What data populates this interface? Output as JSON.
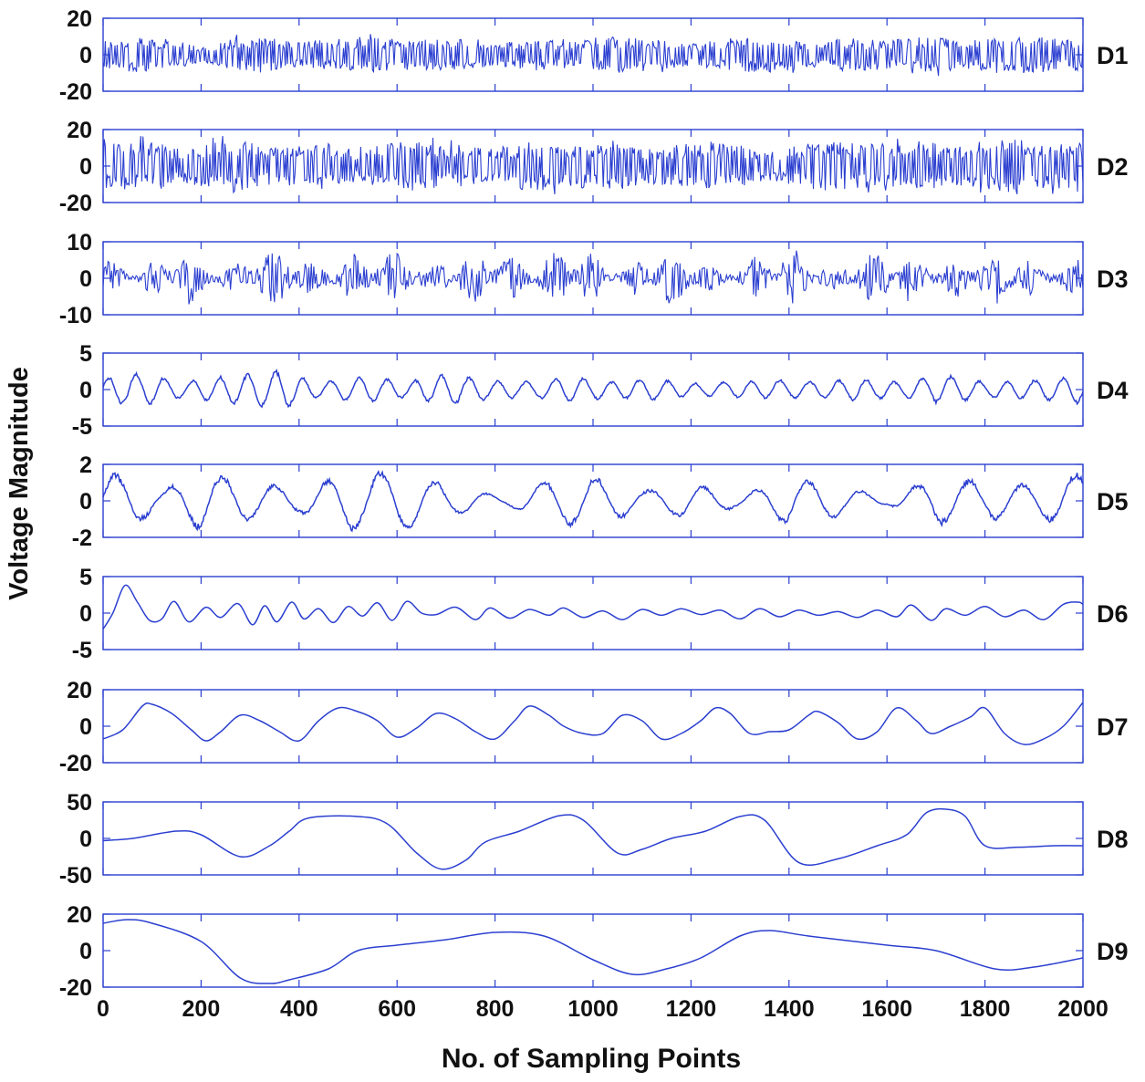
{
  "chart_data": {
    "type": "line",
    "xlabel": "No. of Sampling Points",
    "ylabel": "Voltage Magnitude",
    "xlim": [
      0,
      2000
    ],
    "x_ticks": [
      "0",
      "200",
      "400",
      "600",
      "800",
      "1000",
      "1200",
      "1400",
      "1600",
      "1800",
      "2000"
    ],
    "grid": false,
    "line_color": "#2b3fd0",
    "panels": [
      {
        "name": "D1",
        "ylim": [
          -20,
          20
        ],
        "y_ticks": [
          "20",
          "0",
          "-20"
        ],
        "style": "dense",
        "envelope": [
          [
            0,
            8
          ],
          [
            100,
            10
          ],
          [
            180,
            6
          ],
          [
            200,
            4
          ],
          [
            260,
            9
          ],
          [
            320,
            10
          ],
          [
            400,
            7
          ],
          [
            480,
            9
          ],
          [
            560,
            10
          ],
          [
            640,
            8
          ],
          [
            720,
            9
          ],
          [
            800,
            6
          ],
          [
            880,
            9
          ],
          [
            960,
            7
          ],
          [
            1040,
            10
          ],
          [
            1120,
            9
          ],
          [
            1200,
            6
          ],
          [
            1280,
            9
          ],
          [
            1360,
            10
          ],
          [
            1440,
            7
          ],
          [
            1520,
            9
          ],
          [
            1600,
            8
          ],
          [
            1680,
            10
          ],
          [
            1760,
            8
          ],
          [
            1840,
            9
          ],
          [
            1920,
            10
          ],
          [
            2000,
            7
          ]
        ]
      },
      {
        "name": "D2",
        "ylim": [
          -20,
          20
        ],
        "y_ticks": [
          "20",
          "0",
          "-20"
        ],
        "style": "dense",
        "envelope": [
          [
            0,
            12
          ],
          [
            100,
            14
          ],
          [
            160,
            9
          ],
          [
            260,
            15
          ],
          [
            360,
            10
          ],
          [
            460,
            13
          ],
          [
            520,
            8
          ],
          [
            600,
            14
          ],
          [
            700,
            12
          ],
          [
            800,
            10
          ],
          [
            880,
            14
          ],
          [
            960,
            12
          ],
          [
            1040,
            15
          ],
          [
            1100,
            9
          ],
          [
            1200,
            13
          ],
          [
            1300,
            12
          ],
          [
            1360,
            8
          ],
          [
            1460,
            14
          ],
          [
            1560,
            12
          ],
          [
            1660,
            14
          ],
          [
            1760,
            11
          ],
          [
            1840,
            15
          ],
          [
            1920,
            12
          ],
          [
            2000,
            13
          ]
        ]
      },
      {
        "name": "D3",
        "ylim": [
          -10,
          10
        ],
        "y_ticks": [
          "10",
          "0",
          "-10"
        ],
        "style": "bursty",
        "envelope": [
          [
            0,
            6
          ],
          [
            60,
            2
          ],
          [
            120,
            6
          ],
          [
            180,
            8
          ],
          [
            230,
            3
          ],
          [
            300,
            7
          ],
          [
            380,
            8
          ],
          [
            440,
            4
          ],
          [
            520,
            7
          ],
          [
            600,
            8
          ],
          [
            660,
            3
          ],
          [
            740,
            7
          ],
          [
            800,
            8
          ],
          [
            860,
            4
          ],
          [
            940,
            8
          ],
          [
            1000,
            7
          ],
          [
            1060,
            3
          ],
          [
            1140,
            8
          ],
          [
            1220,
            6
          ],
          [
            1270,
            2
          ],
          [
            1340,
            7
          ],
          [
            1420,
            8
          ],
          [
            1480,
            3
          ],
          [
            1560,
            7
          ],
          [
            1640,
            8
          ],
          [
            1700,
            4
          ],
          [
            1780,
            7
          ],
          [
            1860,
            8
          ],
          [
            1920,
            3
          ],
          [
            2000,
            6
          ]
        ]
      },
      {
        "name": "D4",
        "ylim": [
          -5,
          5
        ],
        "y_ticks": [
          "5",
          "0",
          "-5"
        ],
        "style": "osc",
        "cycles": 70,
        "envelope": [
          [
            0,
            1.5
          ],
          [
            80,
            2.2
          ],
          [
            160,
            1.0
          ],
          [
            260,
            1.8
          ],
          [
            360,
            2.4
          ],
          [
            440,
            1.0
          ],
          [
            540,
            1.6
          ],
          [
            620,
            1.0
          ],
          [
            700,
            2.0
          ],
          [
            800,
            1.2
          ],
          [
            880,
            1.0
          ],
          [
            960,
            1.6
          ],
          [
            1040,
            1.0
          ],
          [
            1120,
            1.4
          ],
          [
            1200,
            0.8
          ],
          [
            1280,
            1.0
          ],
          [
            1380,
            1.2
          ],
          [
            1460,
            1.0
          ],
          [
            1540,
            1.4
          ],
          [
            1620,
            1.0
          ],
          [
            1720,
            1.8
          ],
          [
            1800,
            1.0
          ],
          [
            1900,
            1.2
          ],
          [
            2000,
            1.8
          ]
        ]
      },
      {
        "name": "D5",
        "ylim": [
          -2,
          2
        ],
        "y_ticks": [
          "2",
          "0",
          "-2"
        ],
        "style": "osc",
        "cycles": 37,
        "envelope": [
          [
            0,
            1.5
          ],
          [
            60,
            1.2
          ],
          [
            120,
            0.5
          ],
          [
            200,
            1.5
          ],
          [
            300,
            1.0
          ],
          [
            400,
            0.6
          ],
          [
            520,
            1.6
          ],
          [
            620,
            1.4
          ],
          [
            720,
            0.7
          ],
          [
            820,
            0.2
          ],
          [
            920,
            1.2
          ],
          [
            1000,
            1.3
          ],
          [
            1100,
            0.5
          ],
          [
            1200,
            0.9
          ],
          [
            1300,
            0.3
          ],
          [
            1400,
            1.2
          ],
          [
            1500,
            0.8
          ],
          [
            1600,
            0.2
          ],
          [
            1700,
            1.2
          ],
          [
            1800,
            1.0
          ],
          [
            1900,
            0.8
          ],
          [
            2000,
            1.5
          ]
        ]
      },
      {
        "name": "D6",
        "ylim": [
          -5,
          5
        ],
        "y_ticks": [
          "5",
          "0",
          "-5"
        ],
        "points": [
          [
            0,
            -2.2
          ],
          [
            20,
            0
          ],
          [
            45,
            3.8
          ],
          [
            70,
            1.5
          ],
          [
            95,
            -1.0
          ],
          [
            120,
            -0.8
          ],
          [
            145,
            1.6
          ],
          [
            175,
            -1.2
          ],
          [
            210,
            0.8
          ],
          [
            240,
            -0.6
          ],
          [
            275,
            1.3
          ],
          [
            305,
            -1.6
          ],
          [
            330,
            1.0
          ],
          [
            355,
            -1.2
          ],
          [
            385,
            1.5
          ],
          [
            410,
            -0.8
          ],
          [
            440,
            0.6
          ],
          [
            470,
            -1.3
          ],
          [
            500,
            0.9
          ],
          [
            530,
            -0.4
          ],
          [
            560,
            1.4
          ],
          [
            590,
            -1.0
          ],
          [
            620,
            1.6
          ],
          [
            650,
            0
          ],
          [
            680,
            -0.2
          ],
          [
            720,
            0.8
          ],
          [
            760,
            -0.9
          ],
          [
            790,
            0.7
          ],
          [
            830,
            -0.7
          ],
          [
            870,
            0.5
          ],
          [
            910,
            -0.3
          ],
          [
            940,
            0.7
          ],
          [
            980,
            -0.6
          ],
          [
            1020,
            0.3
          ],
          [
            1060,
            -0.9
          ],
          [
            1100,
            0.5
          ],
          [
            1140,
            -0.3
          ],
          [
            1180,
            0.6
          ],
          [
            1220,
            -0.2
          ],
          [
            1260,
            0.4
          ],
          [
            1300,
            -0.8
          ],
          [
            1340,
            0.6
          ],
          [
            1380,
            -0.5
          ],
          [
            1420,
            0.4
          ],
          [
            1460,
            -0.3
          ],
          [
            1500,
            0.2
          ],
          [
            1540,
            -0.6
          ],
          [
            1580,
            0.4
          ],
          [
            1620,
            -0.5
          ],
          [
            1650,
            1.1
          ],
          [
            1690,
            -1.0
          ],
          [
            1720,
            0.6
          ],
          [
            1760,
            -0.3
          ],
          [
            1800,
            0.9
          ],
          [
            1840,
            -0.5
          ],
          [
            1880,
            0.4
          ],
          [
            1920,
            -0.9
          ],
          [
            1960,
            1.2
          ],
          [
            1990,
            1.5
          ],
          [
            2000,
            1.2
          ]
        ]
      },
      {
        "name": "D7",
        "ylim": [
          -20,
          20
        ],
        "y_ticks": [
          "20",
          "0",
          "-20"
        ],
        "points": [
          [
            0,
            -7
          ],
          [
            40,
            -2
          ],
          [
            80,
            11
          ],
          [
            100,
            12
          ],
          [
            140,
            7
          ],
          [
            180,
            -2
          ],
          [
            210,
            -8
          ],
          [
            240,
            -3
          ],
          [
            280,
            6
          ],
          [
            320,
            3
          ],
          [
            360,
            -3
          ],
          [
            400,
            -8
          ],
          [
            440,
            3
          ],
          [
            480,
            10
          ],
          [
            520,
            8
          ],
          [
            560,
            3
          ],
          [
            600,
            -6
          ],
          [
            640,
            -1
          ],
          [
            680,
            7
          ],
          [
            720,
            4
          ],
          [
            760,
            -3
          ],
          [
            800,
            -7
          ],
          [
            840,
            3
          ],
          [
            870,
            11
          ],
          [
            910,
            6
          ],
          [
            940,
            0
          ],
          [
            980,
            -4
          ],
          [
            1020,
            -4
          ],
          [
            1060,
            6
          ],
          [
            1100,
            3
          ],
          [
            1140,
            -7
          ],
          [
            1180,
            -4
          ],
          [
            1220,
            3
          ],
          [
            1250,
            10
          ],
          [
            1280,
            7
          ],
          [
            1320,
            -4
          ],
          [
            1360,
            -3
          ],
          [
            1400,
            -2
          ],
          [
            1440,
            6
          ],
          [
            1460,
            8
          ],
          [
            1500,
            2
          ],
          [
            1540,
            -7
          ],
          [
            1580,
            -3
          ],
          [
            1620,
            10
          ],
          [
            1660,
            3
          ],
          [
            1690,
            -4
          ],
          [
            1730,
            0
          ],
          [
            1770,
            5
          ],
          [
            1800,
            10
          ],
          [
            1840,
            -4
          ],
          [
            1880,
            -10
          ],
          [
            1920,
            -7
          ],
          [
            1960,
            0
          ],
          [
            2000,
            13
          ]
        ]
      },
      {
        "name": "D8",
        "ylim": [
          -50,
          50
        ],
        "y_ticks": [
          "50",
          "0",
          "-50"
        ],
        "points": [
          [
            0,
            -3
          ],
          [
            60,
            0
          ],
          [
            150,
            10
          ],
          [
            200,
            5
          ],
          [
            280,
            -25
          ],
          [
            340,
            -10
          ],
          [
            380,
            10
          ],
          [
            420,
            28
          ],
          [
            520,
            30
          ],
          [
            580,
            20
          ],
          [
            640,
            -20
          ],
          [
            690,
            -42
          ],
          [
            740,
            -30
          ],
          [
            780,
            -5
          ],
          [
            850,
            10
          ],
          [
            930,
            31
          ],
          [
            980,
            25
          ],
          [
            1050,
            -20
          ],
          [
            1100,
            -15
          ],
          [
            1160,
            0
          ],
          [
            1230,
            10
          ],
          [
            1300,
            30
          ],
          [
            1350,
            25
          ],
          [
            1420,
            -33
          ],
          [
            1500,
            -28
          ],
          [
            1580,
            -10
          ],
          [
            1640,
            5
          ],
          [
            1680,
            35
          ],
          [
            1720,
            40
          ],
          [
            1760,
            30
          ],
          [
            1800,
            -10
          ],
          [
            1870,
            -12
          ],
          [
            1940,
            -10
          ],
          [
            2000,
            -10
          ]
        ]
      },
      {
        "name": "D9",
        "ylim": [
          -20,
          20
        ],
        "y_ticks": [
          "20",
          "0",
          "-20"
        ],
        "points": [
          [
            0,
            15
          ],
          [
            50,
            17
          ],
          [
            100,
            15
          ],
          [
            200,
            5
          ],
          [
            280,
            -15
          ],
          [
            340,
            -18
          ],
          [
            380,
            -16
          ],
          [
            460,
            -10
          ],
          [
            520,
            0
          ],
          [
            600,
            3
          ],
          [
            700,
            6
          ],
          [
            800,
            10
          ],
          [
            900,
            8
          ],
          [
            1000,
            -5
          ],
          [
            1080,
            -13
          ],
          [
            1150,
            -10
          ],
          [
            1220,
            -4
          ],
          [
            1300,
            8
          ],
          [
            1360,
            11
          ],
          [
            1440,
            8
          ],
          [
            1600,
            3
          ],
          [
            1700,
            0
          ],
          [
            1820,
            -10
          ],
          [
            1900,
            -9
          ],
          [
            2000,
            -4
          ]
        ]
      }
    ]
  }
}
